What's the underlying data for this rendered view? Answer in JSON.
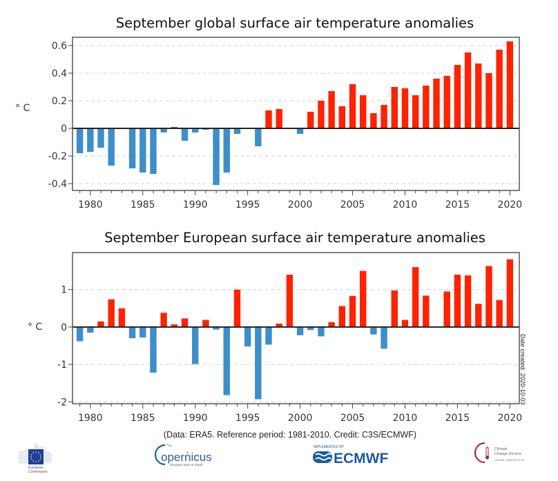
{
  "chart_data": [
    {
      "type": "bar",
      "title": "September global surface air temperature anomalies",
      "xlabel": "",
      "ylabel": "° C",
      "ylim": [
        -0.45,
        0.66
      ],
      "yticks": [
        -0.4,
        -0.2,
        0,
        0.2,
        0.4,
        0.6
      ],
      "ytick_labels": [
        "-0.4",
        "-0.2",
        "0",
        "0.2",
        "0.4",
        "0.6"
      ],
      "xlim": [
        1978.3,
        2020.9
      ],
      "xticks": [
        1980,
        1985,
        1990,
        1995,
        2000,
        2005,
        2010,
        2015,
        2020
      ],
      "xtick_labels": [
        "1980",
        "1985",
        "1990",
        "1995",
        "2000",
        "2005",
        "2010",
        "2015",
        "2020"
      ],
      "grid": "horizontal-dashed",
      "positive_color": "#ff2200",
      "negative_color": "#3d8ec9",
      "x": [
        1979,
        1980,
        1981,
        1982,
        1983,
        1984,
        1985,
        1986,
        1987,
        1988,
        1989,
        1990,
        1991,
        1992,
        1993,
        1994,
        1995,
        1996,
        1997,
        1998,
        1999,
        2000,
        2001,
        2002,
        2003,
        2004,
        2005,
        2006,
        2007,
        2008,
        2009,
        2010,
        2011,
        2012,
        2013,
        2014,
        2015,
        2016,
        2017,
        2018,
        2019,
        2020
      ],
      "values": [
        -0.18,
        -0.17,
        -0.14,
        -0.27,
        0.0,
        -0.29,
        -0.32,
        -0.33,
        -0.03,
        0.01,
        -0.09,
        -0.03,
        -0.01,
        -0.41,
        -0.32,
        -0.04,
        0.0,
        -0.13,
        0.13,
        0.14,
        0.0,
        -0.04,
        0.12,
        0.2,
        0.27,
        0.16,
        0.32,
        0.24,
        0.11,
        0.17,
        0.3,
        0.29,
        0.24,
        0.31,
        0.36,
        0.38,
        0.46,
        0.55,
        0.47,
        0.4,
        0.57,
        0.63
      ]
    },
    {
      "type": "bar",
      "title": "September European surface air temperature anomalies",
      "xlabel": "",
      "ylabel": "° C",
      "ylim": [
        -2.05,
        1.99
      ],
      "yticks": [
        -2,
        -1,
        0,
        1
      ],
      "ytick_labels": [
        "-2",
        "-1",
        "0",
        "1"
      ],
      "xlim": [
        1978.3,
        2020.9
      ],
      "xticks": [
        1980,
        1985,
        1990,
        1995,
        2000,
        2005,
        2010,
        2015,
        2020
      ],
      "xtick_labels": [
        "1980",
        "1985",
        "1990",
        "1995",
        "2000",
        "2005",
        "2010",
        "2015",
        "2020"
      ],
      "grid": "horizontal-dashed",
      "positive_color": "#ff2200",
      "negative_color": "#3d8ec9",
      "x": [
        1979,
        1980,
        1981,
        1982,
        1983,
        1984,
        1985,
        1986,
        1987,
        1988,
        1989,
        1990,
        1991,
        1992,
        1993,
        1994,
        1995,
        1996,
        1997,
        1998,
        1999,
        2000,
        2001,
        2002,
        2003,
        2004,
        2005,
        2006,
        2007,
        2008,
        2009,
        2010,
        2011,
        2012,
        2013,
        2014,
        2015,
        2016,
        2017,
        2018,
        2019,
        2020
      ],
      "values": [
        -0.38,
        -0.15,
        0.15,
        0.74,
        0.5,
        -0.3,
        -0.28,
        -1.22,
        0.38,
        0.07,
        0.23,
        -0.99,
        0.19,
        -0.07,
        -1.82,
        1.0,
        -0.52,
        -1.93,
        -0.47,
        0.09,
        1.4,
        -0.22,
        -0.08,
        -0.25,
        0.13,
        0.56,
        0.83,
        1.5,
        -0.2,
        -0.58,
        0.98,
        0.19,
        1.6,
        0.84,
        0.0,
        0.95,
        1.4,
        1.38,
        0.62,
        1.63,
        0.72,
        1.81
      ]
    }
  ],
  "footer": {
    "credit": "(Data: ERA5.  Reference period: 1981-2010.  Credit: C3S/ECMWF)",
    "date_created": "Date created: 2020-10-03"
  },
  "logos": {
    "european_commission": {
      "line1": "European",
      "line2": "Commission"
    },
    "copernicus": {
      "name": "opernicus",
      "initial": "C",
      "tagline": "Europe's eyes on Earth"
    },
    "ecmwf": {
      "name": "ECMWF",
      "tagline": "IMPLEMENTED BY"
    },
    "climate_change_service": {
      "line1": "Climate",
      "line2": "Change Service",
      "line3": "climate.copernicus.eu"
    }
  }
}
